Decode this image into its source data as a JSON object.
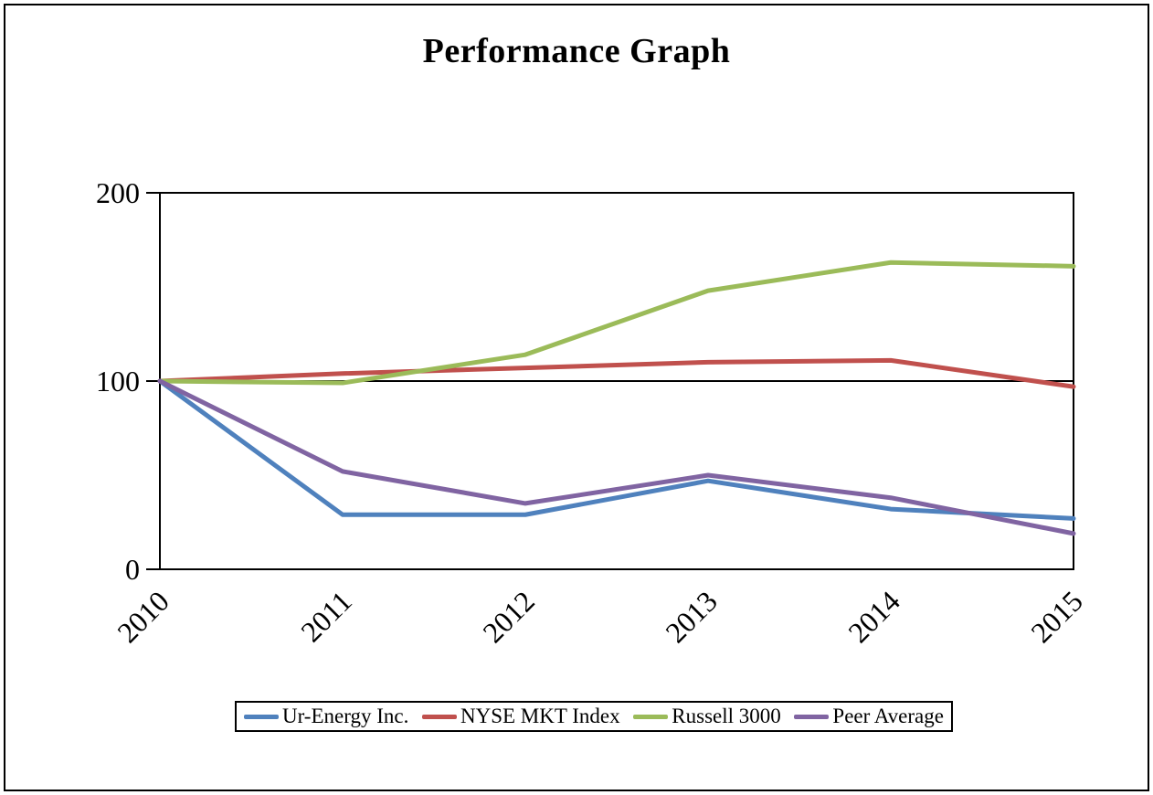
{
  "page": {
    "title": "Performance Graph"
  },
  "chart_data": {
    "type": "line",
    "title": "Performance Graph",
    "x": [
      "2010",
      "2011",
      "2012",
      "2013",
      "2014",
      "2015"
    ],
    "series": [
      {
        "name": "Ur-Energy Inc.",
        "color": "#4F81BD",
        "values": [
          100,
          29,
          29,
          47,
          32,
          27
        ]
      },
      {
        "name": "NYSE MKT Index",
        "color": "#C0504D",
        "values": [
          100,
          104,
          107,
          110,
          111,
          97
        ]
      },
      {
        "name": "Russell 3000",
        "color": "#9BBB59",
        "values": [
          100,
          99,
          114,
          148,
          163,
          161
        ]
      },
      {
        "name": "Peer Average",
        "color": "#8064A2",
        "values": [
          100,
          52,
          35,
          50,
          38,
          19
        ]
      }
    ],
    "yticks": [
      0,
      100,
      200
    ],
    "ylim": [
      0,
      200
    ],
    "baseline": 100,
    "xlabel": "",
    "ylabel": "",
    "grid": false,
    "legend_position": "bottom",
    "axis_color": "#000000",
    "background_color": "#ffffff"
  }
}
